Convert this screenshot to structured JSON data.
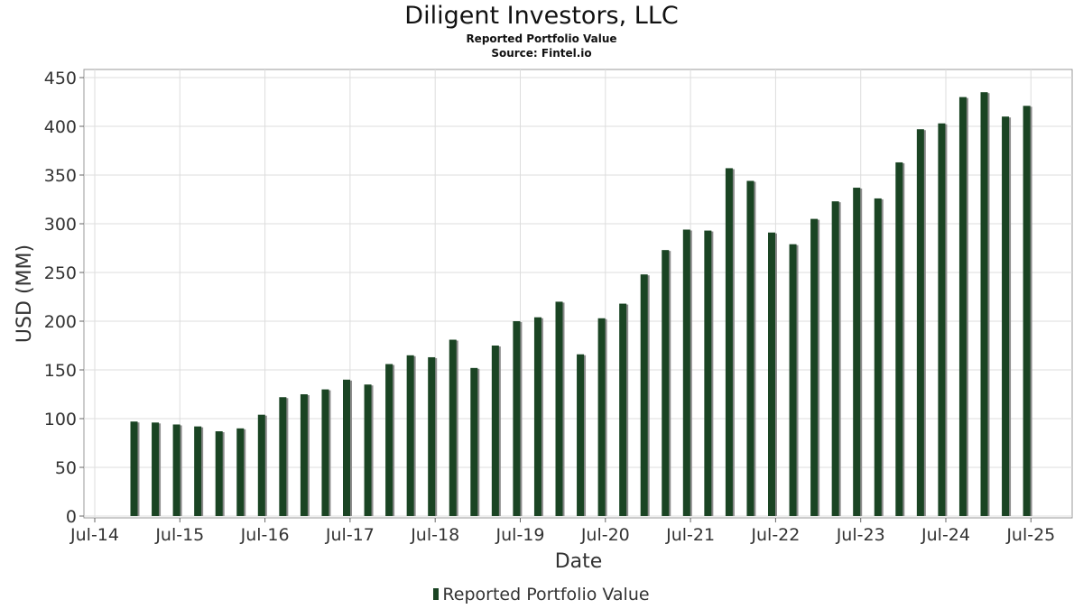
{
  "title": "Diligent Investors, LLC",
  "subtitle": "Reported Portfolio Value",
  "source": "Source: Fintel.io",
  "colors": {
    "bar": "#1a4423",
    "shadow": "#8c8c8c",
    "grid": "#dddddd",
    "frame": "#999999"
  },
  "chart_data": {
    "type": "bar",
    "title": "Diligent Investors, LLC",
    "xlabel": "Date",
    "ylabel": "USD (MM)",
    "ylim": [
      0,
      450
    ],
    "yticks": [
      0,
      50,
      100,
      150,
      200,
      250,
      300,
      350,
      400,
      450
    ],
    "xticks": [
      "Jul-14",
      "Jul-15",
      "Jul-16",
      "Jul-17",
      "Jul-18",
      "Jul-19",
      "Jul-20",
      "Jul-21",
      "Jul-22",
      "Jul-23",
      "Jul-24",
      "Jul-25"
    ],
    "grid": true,
    "legend": "bottom-center",
    "series": [
      {
        "name": "Reported Portfolio Value",
        "values": [
          97,
          96,
          94,
          92,
          87,
          90,
          104,
          122,
          125,
          130,
          140,
          135,
          156,
          165,
          163,
          181,
          152,
          175,
          200,
          204,
          220,
          166,
          203,
          218,
          248,
          273,
          294,
          293,
          357,
          344,
          291,
          279,
          305,
          323,
          337,
          326,
          363,
          397,
          403,
          430,
          435,
          410,
          421
        ]
      }
    ]
  }
}
